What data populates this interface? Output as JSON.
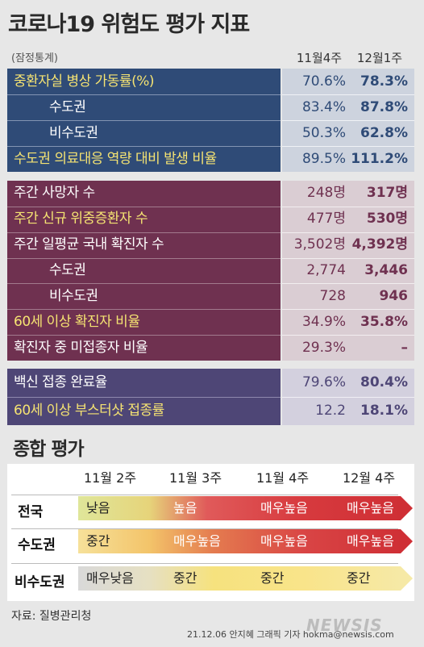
{
  "title": "코로나19 위험도 평가 지표",
  "note": "(잠정통계)",
  "columns": [
    "11월4주",
    "12월1주"
  ],
  "colors": {
    "navy": "#2f4b77",
    "plum": "#6f3150",
    "purple": "#4e4676",
    "highlight": "#f5e372"
  },
  "chart_data": {
    "type": "table",
    "title": "코로나19 위험도 평가 지표",
    "columns": [
      "11월4주",
      "12월1주"
    ],
    "groups": [
      {
        "rows": [
          {
            "label": "중환자실 병상 가동률(%)",
            "v1": "70.6%",
            "v2": "78.3%",
            "highlight": true
          },
          {
            "label": "수도권",
            "v1": "83.4%",
            "v2": "87.8%",
            "highlight": false
          },
          {
            "label": "비수도권",
            "v1": "50.3%",
            "v2": "62.8%",
            "highlight": false
          },
          {
            "label": "수도권 의료대응 역량 대비 발생 비율",
            "v1": "89.5%",
            "v2": "111.2%",
            "highlight": true
          }
        ]
      },
      {
        "rows": [
          {
            "label": "주간 사망자 수",
            "v1": "248명",
            "v2": "317명",
            "highlight": false
          },
          {
            "label": "주간 신규 위중증환자 수",
            "v1": "477명",
            "v2": "530명",
            "highlight": true
          },
          {
            "label": "주간 일평균 국내 확진자 수",
            "v1": "3,502명",
            "v2": "4,392명",
            "highlight": false
          },
          {
            "label": "수도권",
            "v1": "2,774",
            "v2": "3,446",
            "highlight": false
          },
          {
            "label": "비수도권",
            "v1": "728",
            "v2": "946",
            "highlight": false
          },
          {
            "label": "60세 이상 확진자 비율",
            "v1": "34.9%",
            "v2": "35.8%",
            "highlight": true
          },
          {
            "label": "확진자 중 미접종자 비율",
            "v1": "29.3%",
            "v2": "–",
            "highlight": false
          }
        ]
      },
      {
        "rows": [
          {
            "label": "백신 접종 완료율",
            "v1": "79.6%",
            "v2": "80.4%",
            "highlight": false
          },
          {
            "label": "60세 이상 부스터샷 접종률",
            "v1": "12.2",
            "v2": "18.1%",
            "highlight": true
          }
        ]
      }
    ]
  },
  "assessment": {
    "title": "종합 평가",
    "weeks": [
      "11월 2주",
      "11월 3주",
      "11월 4주",
      "12월 4주"
    ],
    "rows": [
      {
        "region": "전국",
        "levels": [
          "낮음",
          "높음",
          "매우높음",
          "매우높음"
        ]
      },
      {
        "region": "수도권",
        "levels": [
          "중간",
          "매우높음",
          "매우높음",
          "매우높음"
        ]
      },
      {
        "region": "비수도권",
        "levels": [
          "매우낮음",
          "중간",
          "중간",
          "중간"
        ]
      }
    ]
  },
  "source": "자료: 질병관리청",
  "credit": "21.12.06 안지혜 그래픽 기자 hokma@newsis.com",
  "logo": "NEWSIS"
}
